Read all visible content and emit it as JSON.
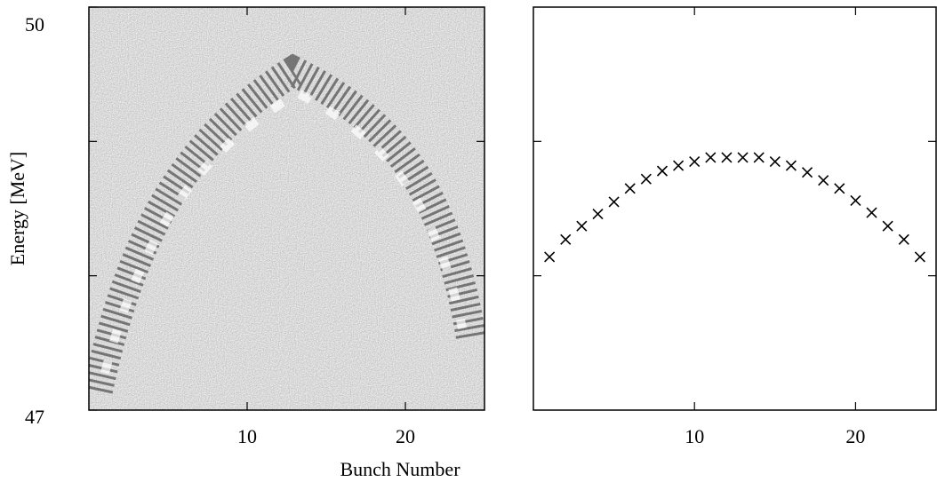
{
  "chart_data": [
    {
      "type": "image",
      "xlabel": "Bunch Number",
      "ylabel": "Energy [MeV]",
      "xlim": [
        0,
        25
      ],
      "ylim": [
        47,
        50
      ],
      "xticks": [
        10,
        20
      ],
      "yticks": [
        47,
        50
      ],
      "yminor_ticks": [
        48,
        49
      ]
    },
    {
      "type": "scatter",
      "marker": "x",
      "color": "#000000",
      "xlim": [
        0,
        25
      ],
      "ylim": [
        47,
        50
      ],
      "xticks": [
        10,
        20
      ],
      "yminor_ticks": [
        48,
        49
      ],
      "x": [
        1,
        2,
        3,
        4,
        5,
        6,
        7,
        8,
        9,
        10,
        11,
        12,
        13,
        14,
        15,
        16,
        17,
        18,
        19,
        20,
        21,
        22,
        23,
        24
      ],
      "values": [
        48.14,
        48.27,
        48.37,
        48.46,
        48.55,
        48.65,
        48.72,
        48.78,
        48.82,
        48.85,
        48.88,
        48.88,
        48.88,
        48.88,
        48.85,
        48.82,
        48.77,
        48.71,
        48.65,
        48.56,
        48.47,
        48.37,
        48.27,
        48.14
      ]
    }
  ]
}
